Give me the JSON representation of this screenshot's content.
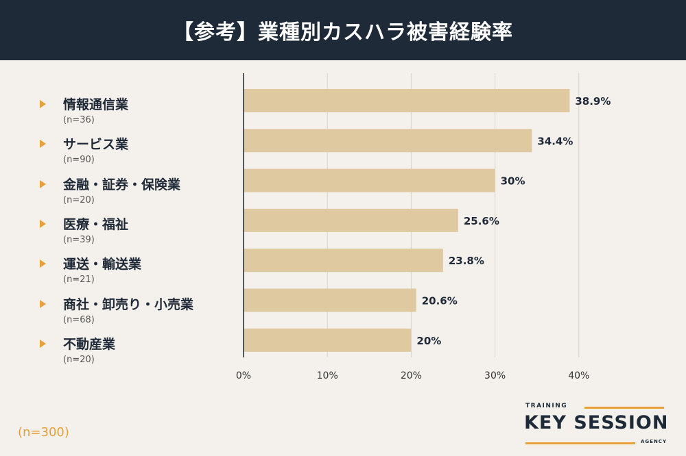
{
  "title": "【参考】業種別カスハラ被害経験率",
  "footnote": "(n=300)",
  "logo": {
    "top": "TRAINING",
    "brand": "KEY SESSION",
    "bottom": "AGENCY"
  },
  "colors": {
    "header_bg": "#1e2a38",
    "bar": "#dfc9a1",
    "accent": "#e8a13a",
    "background": "#f4f1ec"
  },
  "chart_data": {
    "type": "bar",
    "orientation": "horizontal",
    "categories": [
      "情報通信業",
      "サービス業",
      "金融・証券・保険業",
      "医療・福祉",
      "運送・輸送業",
      "商社・卸売り・小売業",
      "不動産業"
    ],
    "sample_sizes": [
      "(n=36)",
      "(n=90)",
      "(n=20)",
      "(n=39)",
      "(n=21)",
      "(n=68)",
      "(n=20)"
    ],
    "values": [
      38.9,
      34.4,
      30,
      25.6,
      23.8,
      20.6,
      20
    ],
    "value_labels": [
      "38.9%",
      "34.4%",
      "30%",
      "25.6%",
      "23.8%",
      "20.6%",
      "20%"
    ],
    "xlim": [
      0,
      40
    ],
    "ticks": [
      "0%",
      "10%",
      "20%",
      "30%",
      "40%"
    ],
    "grid": true
  }
}
